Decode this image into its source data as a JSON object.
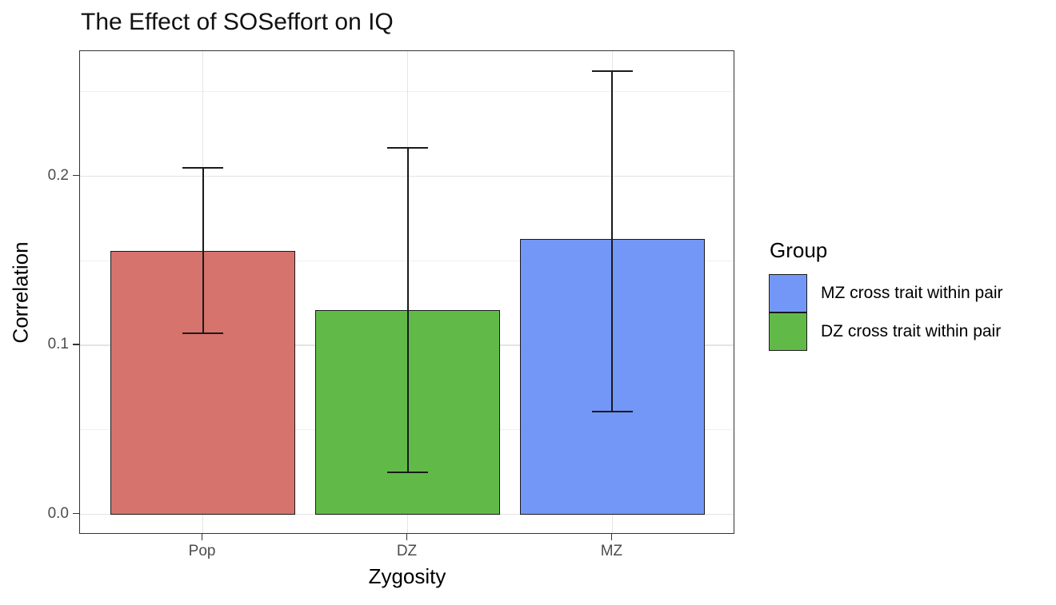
{
  "chart_data": {
    "type": "bar",
    "title": "The Effect of SOSeffort on IQ",
    "xlabel": "Zygosity",
    "ylabel": "Correlation",
    "categories": [
      "Pop",
      "DZ",
      "MZ"
    ],
    "values": [
      0.156,
      0.121,
      0.163
    ],
    "error_bars": [
      {
        "lower": 0.107,
        "upper": 0.205
      },
      {
        "lower": 0.025,
        "upper": 0.217
      },
      {
        "lower": 0.061,
        "upper": 0.262
      }
    ],
    "bar_colors": [
      "#d6736c",
      "#61ba48",
      "#7397f6"
    ],
    "yticks": [
      0.0,
      0.1,
      0.2
    ],
    "ytick_labels": [
      "0.0",
      "0.1",
      "0.2"
    ],
    "y_minor_gridlines": [
      0.05,
      0.15,
      0.25
    ],
    "ylim": [
      -0.012,
      0.274
    ],
    "grid": true,
    "legend_position": "right",
    "legend": {
      "title": "Group",
      "entries": [
        {
          "label": "MZ cross trait within pair",
          "color": "#7397f6"
        },
        {
          "label": "DZ cross trait within pair",
          "color": "#61ba48"
        }
      ]
    }
  },
  "styles": {
    "bar_edge_color": "#1a1a1a",
    "errorbar_color": "#1a1a1a",
    "major_grid_color": "#e4e4e4",
    "minor_grid_color": "#f0f0f0",
    "panel_border_color": "#333333",
    "tick_mark_color": "#333333",
    "tick_label_color": "#4d4d4d",
    "background": "#ffffff"
  }
}
